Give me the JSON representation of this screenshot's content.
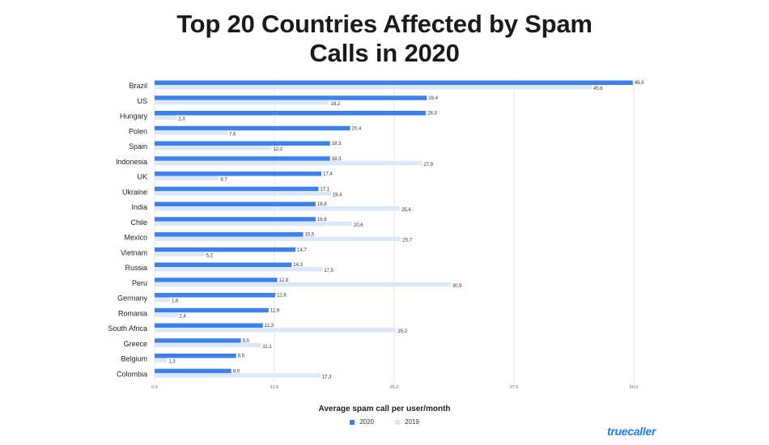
{
  "chart_data": {
    "type": "bar",
    "orientation": "horizontal",
    "title_lines": [
      "Top 20 Countries Affected by Spam",
      "Calls in 2020"
    ],
    "xlabel": "Average spam call per user/month",
    "ylabel": "",
    "xlim": [
      0,
      50
    ],
    "xticks": [
      "0.0",
      "12.5",
      "25.0",
      "37.5",
      "50.0"
    ],
    "grid": true,
    "legend_position": "bottom-center",
    "categories": [
      "Brazil",
      "US",
      "Hungary",
      "Polen",
      "Spain",
      "Indonesia",
      "UK",
      "Ukraine",
      "India",
      "Chile",
      "Mexico",
      "Vietnam",
      "Russia",
      "Peru",
      "Germany",
      "Romania",
      "South Africa",
      "Greece",
      "Belgium",
      "Colombia"
    ],
    "series": [
      {
        "name": "2020",
        "color": "#3b82f0",
        "values": [
          49.9,
          28.4,
          28.3,
          20.4,
          18.3,
          18.3,
          17.4,
          17.1,
          16.8,
          16.8,
          15.5,
          14.7,
          14.3,
          12.8,
          12.6,
          11.9,
          11.3,
          9.0,
          8.5,
          8.0
        ],
        "labels": [
          "49,9",
          "28,4",
          "28,3",
          "20,4",
          "18,3",
          "18,3",
          "17,4",
          "17,1",
          "16,8",
          "16,8",
          "15,5",
          "14,7",
          "14,3",
          "12,8",
          "12,6",
          "11,9",
          "11,3",
          "9,0",
          "8,5",
          "8,0"
        ]
      },
      {
        "name": "2019",
        "color": "#dbe8fa",
        "values": [
          45.6,
          18.2,
          2.3,
          7.6,
          12.2,
          27.9,
          6.7,
          18.4,
          25.6,
          20.6,
          25.7,
          5.2,
          17.5,
          30.9,
          1.6,
          2.4,
          25.2,
          11.1,
          1.3,
          17.3
        ],
        "labels": [
          "45,6",
          "18,2",
          "2,3",
          "7,6",
          "12,2",
          "27,9",
          "6,7",
          "18,4",
          "25,6",
          "20,6",
          "25,7",
          "5,2",
          "17,5",
          "30,9",
          "1,6",
          "2,4",
          "25,2",
          "11,1",
          "1,3",
          "17,3"
        ]
      }
    ]
  },
  "brand": {
    "logo_text": "truecaller",
    "color": "#1d7df6"
  }
}
